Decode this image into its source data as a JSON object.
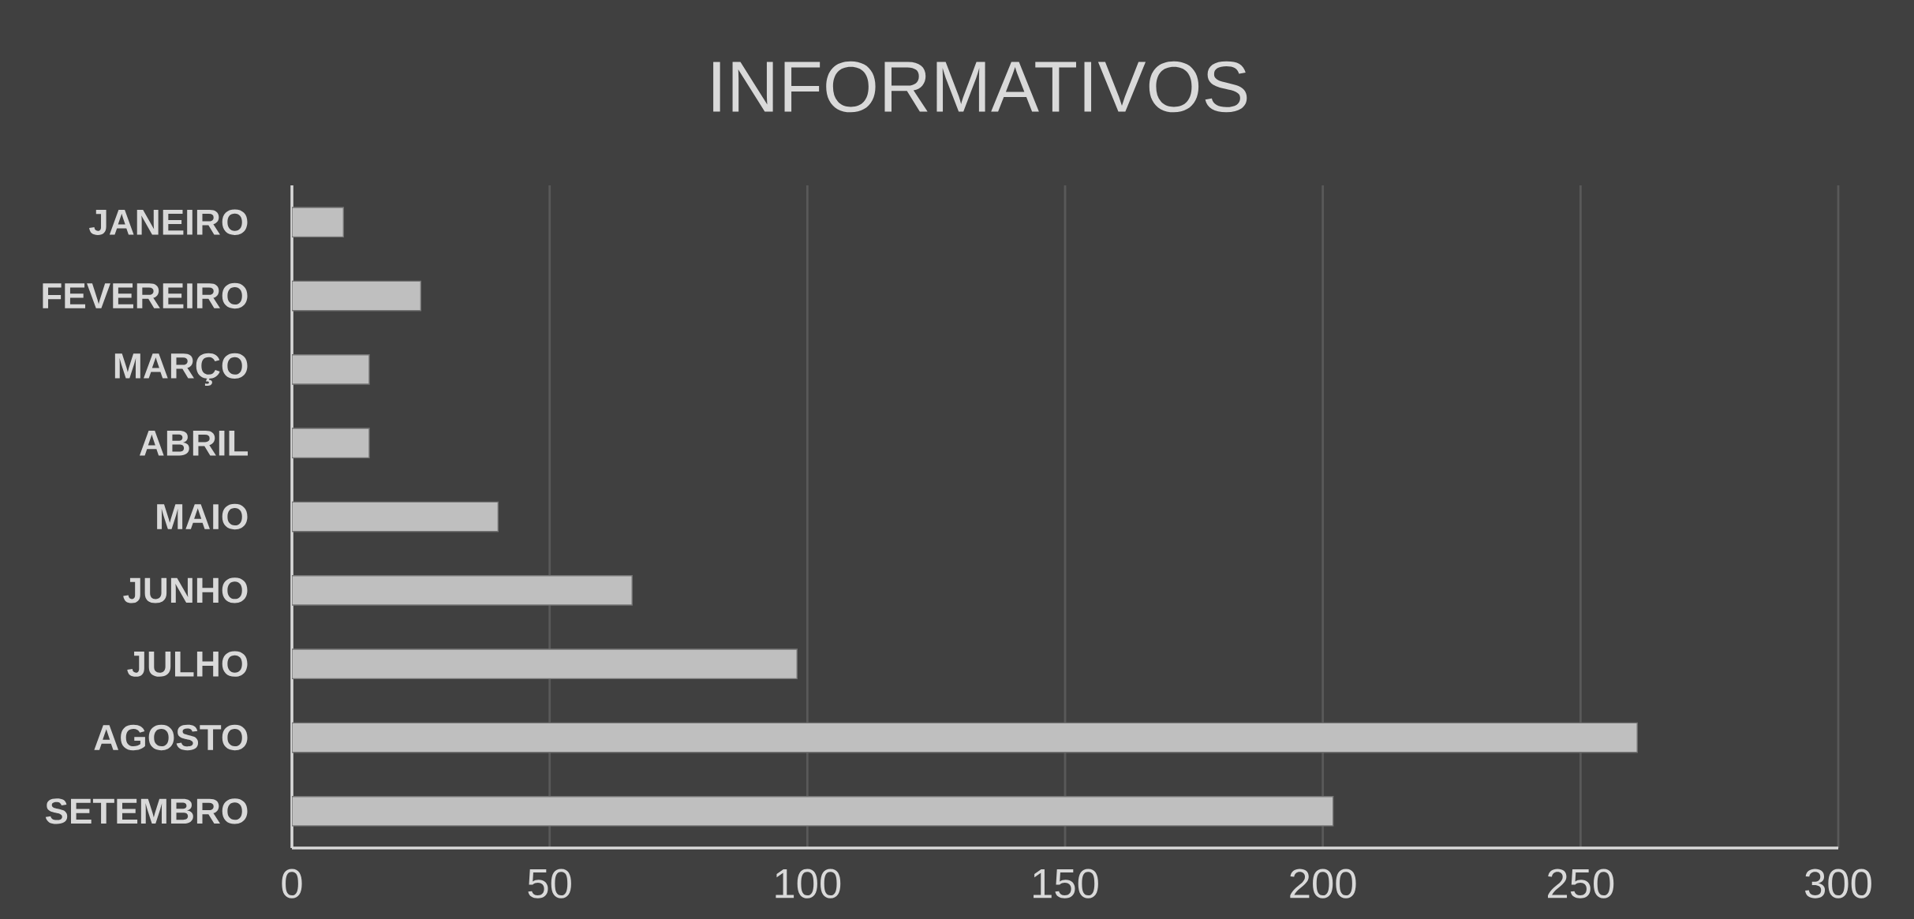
{
  "chart_data": {
    "type": "bar",
    "orientation": "horizontal",
    "title": "INFORMATIVOS",
    "categories": [
      "JANEIRO",
      "FEVEREIRO",
      "MARÇO",
      "ABRIL",
      "MAIO",
      "JUNHO",
      "JULHO",
      "AGOSTO",
      "SETEMBRO"
    ],
    "values": [
      10,
      25,
      15,
      15,
      40,
      66,
      98,
      261,
      202
    ],
    "color": "#bfbfbf",
    "xlim": [
      0,
      300
    ],
    "xticks": [
      0,
      50,
      100,
      150,
      200,
      250,
      300
    ],
    "grid": "x"
  }
}
